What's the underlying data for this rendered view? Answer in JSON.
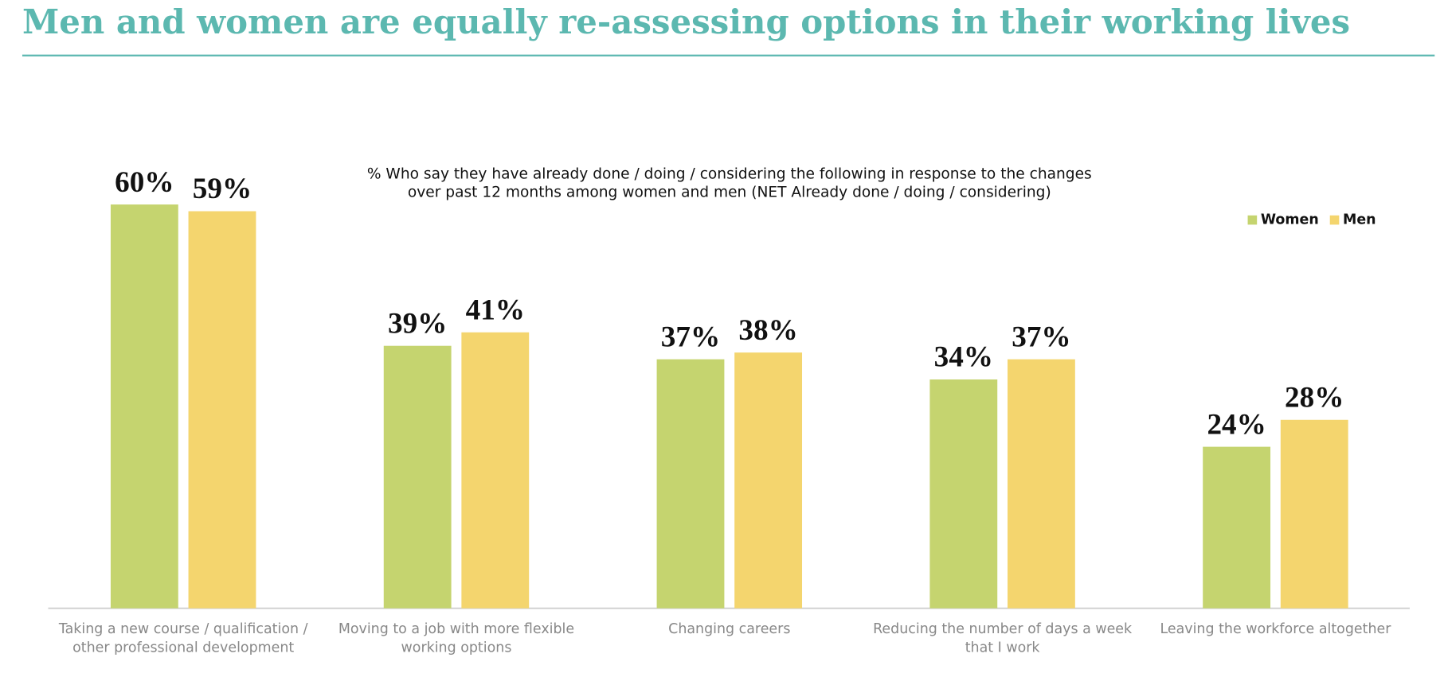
{
  "chart_data": {
    "type": "bar",
    "title": "Men and women are equally re-assessing options in their working lives",
    "subtitle": "% Who say they have already done / doing / considering the following in response to the changes over past 12 months among women and men (NET Already done / doing / considering)",
    "categories": [
      "Taking a new course / qualification / other professional development",
      "Moving to a job with more flexible working options",
      "Changing careers",
      "Reducing the number of days a week that I work",
      "Leaving the workforce altogether"
    ],
    "series": [
      {
        "name": "Women",
        "color": "#c5d46f",
        "values": [
          60,
          39,
          37,
          34,
          24
        ],
        "value_labels": [
          "60%",
          "39%",
          "37%",
          "34%",
          "24%"
        ]
      },
      {
        "name": "Men",
        "color": "#f4d56e",
        "values": [
          59,
          41,
          38,
          37,
          28
        ],
        "value_labels": [
          "59%",
          "41%",
          "38%",
          "37%",
          "28%"
        ]
      }
    ],
    "legend": "top-right"
  }
}
